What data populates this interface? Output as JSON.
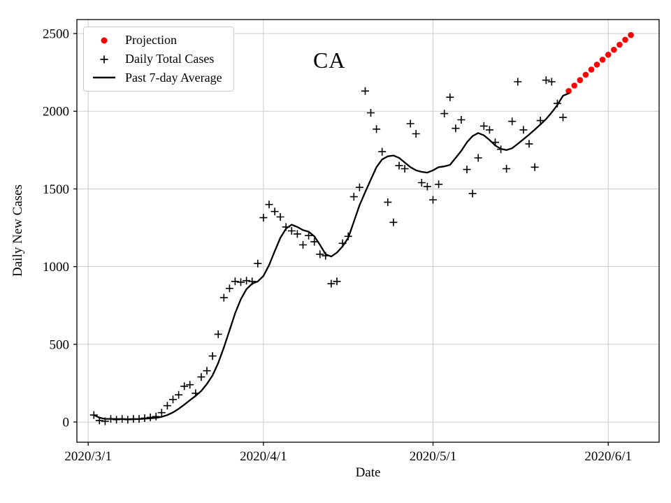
{
  "chart_data": {
    "type": "line+scatter",
    "title": "CA",
    "xlabel": "Date",
    "ylabel": "Daily New Cases",
    "grid": true,
    "legend_position": "upper left",
    "xlim": [
      "2020/2/28",
      "2020/6/10"
    ],
    "ylim": [
      -130,
      2590
    ],
    "x_ticks": [
      {
        "label": "2020/3/1",
        "value": "2020/3/1"
      },
      {
        "label": "2020/4/1",
        "value": "2020/4/1"
      },
      {
        "label": "2020/5/1",
        "value": "2020/5/1"
      },
      {
        "label": "2020/6/1",
        "value": "2020/6/1"
      }
    ],
    "y_ticks": [
      0,
      500,
      1000,
      1500,
      2000,
      2500
    ],
    "colors": {
      "projection": "#ff0000",
      "daily_cases": "#000000",
      "average": "#000000",
      "grid": "#cccccc"
    },
    "series": [
      {
        "name": "Projection",
        "type": "scatter",
        "marker": "circle",
        "color": "#ff0000",
        "points": [
          [
            "2020/5/25",
            2130
          ],
          [
            "2020/5/26",
            2165
          ],
          [
            "2020/5/27",
            2200
          ],
          [
            "2020/5/28",
            2235
          ],
          [
            "2020/5/29",
            2268
          ],
          [
            "2020/5/30",
            2300
          ],
          [
            "2020/5/31",
            2332
          ],
          [
            "2020/6/1",
            2364
          ],
          [
            "2020/6/2",
            2396
          ],
          [
            "2020/6/3",
            2428
          ],
          [
            "2020/6/4",
            2460
          ],
          [
            "2020/6/5",
            2490
          ]
        ]
      },
      {
        "name": "Daily Total Cases",
        "type": "scatter",
        "marker": "plus",
        "color": "#000000",
        "points": [
          [
            "2020/3/2",
            45
          ],
          [
            "2020/3/3",
            10
          ],
          [
            "2020/3/4",
            5
          ],
          [
            "2020/3/5",
            20
          ],
          [
            "2020/3/6",
            15
          ],
          [
            "2020/3/7",
            20
          ],
          [
            "2020/3/8",
            15
          ],
          [
            "2020/3/9",
            20
          ],
          [
            "2020/3/10",
            20
          ],
          [
            "2020/3/11",
            25
          ],
          [
            "2020/3/12",
            30
          ],
          [
            "2020/3/13",
            35
          ],
          [
            "2020/3/14",
            60
          ],
          [
            "2020/3/15",
            105
          ],
          [
            "2020/3/16",
            145
          ],
          [
            "2020/3/17",
            175
          ],
          [
            "2020/3/18",
            230
          ],
          [
            "2020/3/19",
            240
          ],
          [
            "2020/3/20",
            185
          ],
          [
            "2020/3/21",
            290
          ],
          [
            "2020/3/22",
            330
          ],
          [
            "2020/3/23",
            425
          ],
          [
            "2020/3/24",
            565
          ],
          [
            "2020/3/25",
            800
          ],
          [
            "2020/3/26",
            860
          ],
          [
            "2020/3/27",
            905
          ],
          [
            "2020/3/28",
            900
          ],
          [
            "2020/3/29",
            910
          ],
          [
            "2020/3/30",
            905
          ],
          [
            "2020/3/31",
            1020
          ],
          [
            "2020/4/1",
            1315
          ],
          [
            "2020/4/2",
            1400
          ],
          [
            "2020/4/3",
            1355
          ],
          [
            "2020/4/4",
            1320
          ],
          [
            "2020/4/5",
            1255
          ],
          [
            "2020/4/6",
            1230
          ],
          [
            "2020/4/7",
            1210
          ],
          [
            "2020/4/8",
            1140
          ],
          [
            "2020/4/9",
            1200
          ],
          [
            "2020/4/10",
            1160
          ],
          [
            "2020/4/11",
            1080
          ],
          [
            "2020/4/12",
            1070
          ],
          [
            "2020/4/13",
            890
          ],
          [
            "2020/4/14",
            905
          ],
          [
            "2020/4/15",
            1150
          ],
          [
            "2020/4/16",
            1195
          ],
          [
            "2020/4/17",
            1450
          ],
          [
            "2020/4/18",
            1510
          ],
          [
            "2020/4/19",
            2130
          ],
          [
            "2020/4/20",
            1990
          ],
          [
            "2020/4/21",
            1885
          ],
          [
            "2020/4/22",
            1740
          ],
          [
            "2020/4/23",
            1415
          ],
          [
            "2020/4/24",
            1285
          ],
          [
            "2020/4/25",
            1650
          ],
          [
            "2020/4/26",
            1630
          ],
          [
            "2020/4/27",
            1920
          ],
          [
            "2020/4/28",
            1855
          ],
          [
            "2020/4/29",
            1540
          ],
          [
            "2020/4/30",
            1515
          ],
          [
            "2020/5/1",
            1430
          ],
          [
            "2020/5/2",
            1530
          ],
          [
            "2020/5/3",
            1985
          ],
          [
            "2020/5/4",
            2090
          ],
          [
            "2020/5/5",
            1890
          ],
          [
            "2020/5/6",
            1945
          ],
          [
            "2020/5/7",
            1625
          ],
          [
            "2020/5/8",
            1470
          ],
          [
            "2020/5/9",
            1700
          ],
          [
            "2020/5/10",
            1905
          ],
          [
            "2020/5/11",
            1880
          ],
          [
            "2020/5/12",
            1800
          ],
          [
            "2020/5/13",
            1755
          ],
          [
            "2020/5/14",
            1630
          ],
          [
            "2020/5/15",
            1935
          ],
          [
            "2020/5/16",
            2190
          ],
          [
            "2020/5/17",
            1880
          ],
          [
            "2020/5/18",
            1790
          ],
          [
            "2020/5/19",
            1640
          ],
          [
            "2020/5/20",
            1940
          ],
          [
            "2020/5/21",
            2200
          ],
          [
            "2020/5/22",
            2190
          ],
          [
            "2020/5/23",
            2050
          ],
          [
            "2020/5/24",
            1960
          ]
        ]
      },
      {
        "name": "Past 7-day Average",
        "type": "line",
        "color": "#000000",
        "points": [
          [
            "2020/3/2",
            45
          ],
          [
            "2020/3/3",
            28
          ],
          [
            "2020/3/4",
            20
          ],
          [
            "2020/3/5",
            20
          ],
          [
            "2020/3/6",
            19
          ],
          [
            "2020/3/7",
            19
          ],
          [
            "2020/3/8",
            18
          ],
          [
            "2020/3/9",
            18
          ],
          [
            "2020/3/10",
            19
          ],
          [
            "2020/3/11",
            21
          ],
          [
            "2020/3/12",
            24
          ],
          [
            "2020/3/13",
            27
          ],
          [
            "2020/3/14",
            33
          ],
          [
            "2020/3/15",
            45
          ],
          [
            "2020/3/16",
            62
          ],
          [
            "2020/3/17",
            85
          ],
          [
            "2020/3/18",
            112
          ],
          [
            "2020/3/19",
            140
          ],
          [
            "2020/3/20",
            168
          ],
          [
            "2020/3/21",
            200
          ],
          [
            "2020/3/22",
            245
          ],
          [
            "2020/3/23",
            300
          ],
          [
            "2020/3/24",
            380
          ],
          [
            "2020/3/25",
            480
          ],
          [
            "2020/3/26",
            590
          ],
          [
            "2020/3/27",
            700
          ],
          [
            "2020/3/28",
            790
          ],
          [
            "2020/3/29",
            855
          ],
          [
            "2020/3/30",
            890
          ],
          [
            "2020/3/31",
            905
          ],
          [
            "2020/4/1",
            940
          ],
          [
            "2020/4/2",
            1010
          ],
          [
            "2020/4/3",
            1100
          ],
          [
            "2020/4/4",
            1185
          ],
          [
            "2020/4/5",
            1245
          ],
          [
            "2020/4/6",
            1270
          ],
          [
            "2020/4/7",
            1255
          ],
          [
            "2020/4/8",
            1235
          ],
          [
            "2020/4/9",
            1225
          ],
          [
            "2020/4/10",
            1195
          ],
          [
            "2020/4/11",
            1140
          ],
          [
            "2020/4/12",
            1080
          ],
          [
            "2020/4/13",
            1065
          ],
          [
            "2020/4/14",
            1090
          ],
          [
            "2020/4/15",
            1130
          ],
          [
            "2020/4/16",
            1185
          ],
          [
            "2020/4/17",
            1290
          ],
          [
            "2020/4/18",
            1395
          ],
          [
            "2020/4/19",
            1480
          ],
          [
            "2020/4/20",
            1560
          ],
          [
            "2020/4/21",
            1640
          ],
          [
            "2020/4/22",
            1690
          ],
          [
            "2020/4/23",
            1710
          ],
          [
            "2020/4/24",
            1715
          ],
          [
            "2020/4/25",
            1700
          ],
          [
            "2020/4/26",
            1670
          ],
          [
            "2020/4/27",
            1640
          ],
          [
            "2020/4/28",
            1620
          ],
          [
            "2020/4/29",
            1610
          ],
          [
            "2020/4/30",
            1605
          ],
          [
            "2020/5/1",
            1620
          ],
          [
            "2020/5/2",
            1640
          ],
          [
            "2020/5/3",
            1645
          ],
          [
            "2020/5/4",
            1655
          ],
          [
            "2020/5/5",
            1700
          ],
          [
            "2020/5/6",
            1745
          ],
          [
            "2020/5/7",
            1800
          ],
          [
            "2020/5/8",
            1840
          ],
          [
            "2020/5/9",
            1860
          ],
          [
            "2020/5/10",
            1845
          ],
          [
            "2020/5/11",
            1815
          ],
          [
            "2020/5/12",
            1780
          ],
          [
            "2020/5/13",
            1758
          ],
          [
            "2020/5/14",
            1750
          ],
          [
            "2020/5/15",
            1762
          ],
          [
            "2020/5/16",
            1790
          ],
          [
            "2020/5/17",
            1820
          ],
          [
            "2020/5/18",
            1850
          ],
          [
            "2020/5/19",
            1882
          ],
          [
            "2020/5/20",
            1915
          ],
          [
            "2020/5/21",
            1950
          ],
          [
            "2020/5/22",
            1992
          ],
          [
            "2020/5/23",
            2040
          ],
          [
            "2020/5/24",
            2100
          ],
          [
            "2020/5/25",
            2115
          ]
        ]
      }
    ]
  }
}
